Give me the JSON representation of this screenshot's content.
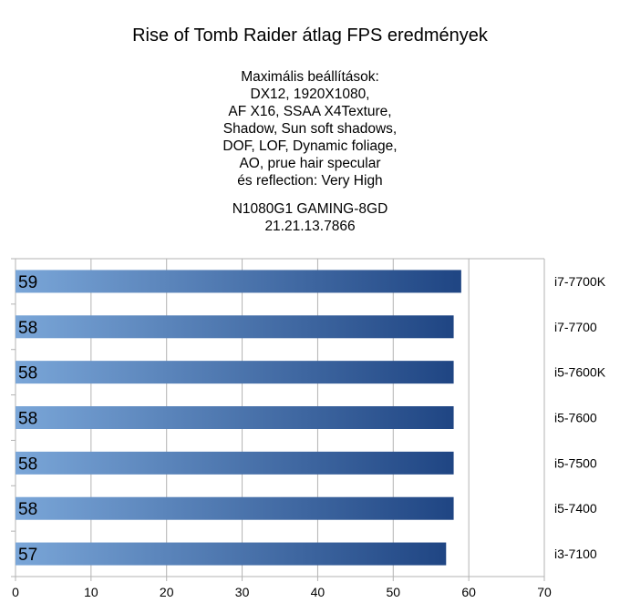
{
  "chart_data": {
    "type": "bar",
    "orientation": "horizontal",
    "title": "Rise of Tomb Raider átlag FPS eredmények",
    "subtitle_lines": [
      "Maximális beállítások:",
      "DX12, 1920X1080,",
      "AF X16, SSAA X4Texture,",
      "Shadow, Sun soft shadows,",
      "DOF, LOF, Dynamic foliage,",
      "AO, prue hair specular",
      "és reflection: Very High"
    ],
    "subtitle_lines_2": [
      "N1080G1 GAMING-8GD",
      "21.21.13.7866"
    ],
    "categories": [
      "i7-7700K",
      "i7-7700",
      "i5-7600K",
      "i5-7600",
      "i5-7500",
      "i5-7400",
      "i3-7100"
    ],
    "values": [
      59,
      58,
      58,
      58,
      58,
      58,
      57
    ],
    "xlim": [
      0,
      70
    ],
    "xticks": [
      0,
      10,
      20,
      30,
      40,
      50,
      60,
      70
    ],
    "grid": true,
    "category_labels_side": "right",
    "bar_gradient": [
      "#7aa6d8",
      "#1f4583"
    ]
  }
}
